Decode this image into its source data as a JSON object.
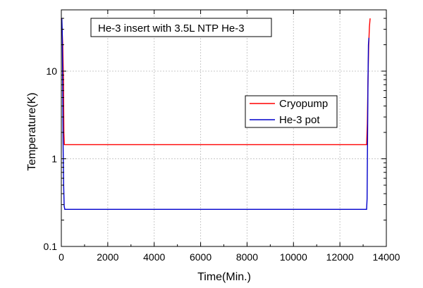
{
  "chart_data": {
    "type": "line",
    "title": "",
    "annotation": "He-3 insert with 3.5L NTP He-3",
    "xlabel": "Time(Min.)",
    "ylabel": "Temperature(K)",
    "xlim": [
      0,
      14000
    ],
    "ylim": [
      0.1,
      50
    ],
    "yscale": "log",
    "grid": true,
    "legend_position": "right",
    "x_ticks": [
      0,
      2000,
      4000,
      6000,
      8000,
      10000,
      12000,
      14000
    ],
    "x_tick_labels": [
      "0",
      "2000",
      "4000",
      "6000",
      "8000",
      "10000",
      "12000",
      "14000"
    ],
    "y_ticks": [
      0.1,
      1,
      10
    ],
    "y_tick_labels": [
      "0.1",
      "1",
      "10"
    ],
    "series": [
      {
        "name": "Cryopump",
        "color": "#ff0000",
        "x": [
          0,
          30,
          60,
          90,
          110,
          130,
          13150,
          13180,
          13210,
          13240,
          13270,
          13300
        ],
        "y": [
          40,
          30,
          20,
          8,
          2,
          1.45,
          1.45,
          2.5,
          8,
          20,
          32,
          40
        ]
      },
      {
        "name": "He-3 pot",
        "color": "#0000cc",
        "x": [
          0,
          20,
          40,
          60,
          80,
          100,
          120,
          150,
          13150,
          13170,
          13190,
          13210,
          13230,
          13250
        ],
        "y": [
          40,
          40,
          28,
          6,
          1.3,
          0.5,
          0.29,
          0.265,
          0.265,
          0.35,
          1.5,
          8,
          20,
          24
        ]
      }
    ]
  }
}
